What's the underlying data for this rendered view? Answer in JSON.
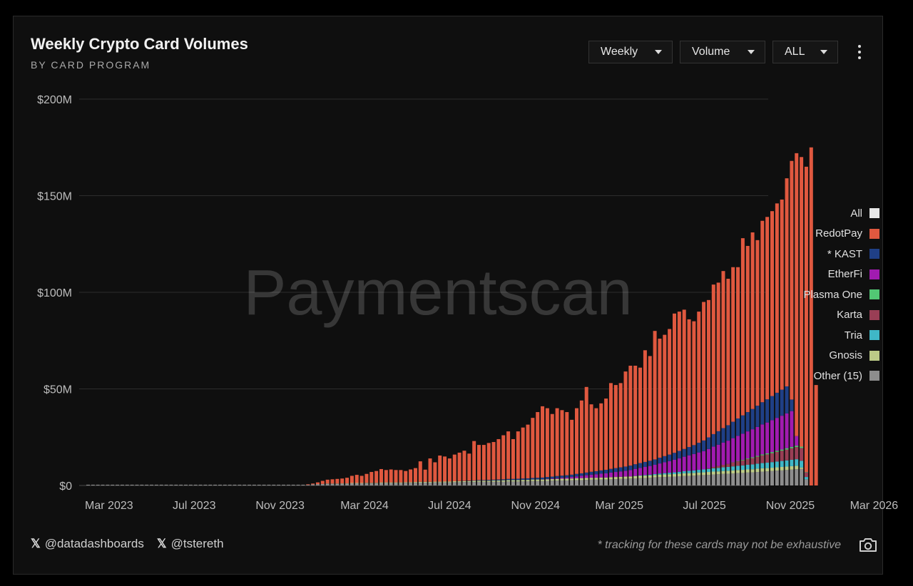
{
  "header": {
    "title": "Weekly Crypto Card Volumes",
    "subtitle": "BY CARD PROGRAM"
  },
  "controls": {
    "interval": "Weekly",
    "metric": "Volume",
    "range": "ALL"
  },
  "watermark": "Paymentscan",
  "footer": {
    "handle1": "@datadashboards",
    "handle2": "@tstereth",
    "note": "* tracking for these cards may not be exhaustive"
  },
  "legend": [
    {
      "label": "All",
      "color": "#e6e6e6"
    },
    {
      "label": "RedotPay",
      "color": "#e0583f"
    },
    {
      "label": "* KAST",
      "color": "#1f3f86"
    },
    {
      "label": "EtherFi",
      "color": "#a11bb0"
    },
    {
      "label": "Plasma One",
      "color": "#52c774"
    },
    {
      "label": "Karta",
      "color": "#993e55"
    },
    {
      "label": "Tria",
      "color": "#3fb7c7"
    },
    {
      "label": "Gnosis",
      "color": "#bccb87"
    },
    {
      "label": "Other (15)",
      "color": "#8d8d8d"
    }
  ],
  "chart_data": {
    "type": "bar",
    "stacked": true,
    "x_start": "2023-01-30",
    "x_interval": "weekly",
    "xticks": [
      "Mar 2023",
      "Jul 2023",
      "Nov 2023",
      "Mar 2024",
      "Jul 2024",
      "Nov 2024",
      "Mar 2025",
      "Jul 2025",
      "Nov 2025",
      "Mar 2026"
    ],
    "yticks": [
      "$0",
      "$50M",
      "$100M",
      "$150M",
      "$200M"
    ],
    "ylim": [
      0,
      200
    ],
    "y_unit": "$M",
    "grid": true,
    "legend_position": "right",
    "totals": [
      0.4,
      0.4,
      0.4,
      0.4,
      0.4,
      0.4,
      0.4,
      0.4,
      0.4,
      0.4,
      0.4,
      0.4,
      0.4,
      0.4,
      0.4,
      0.4,
      0.4,
      0.4,
      0.4,
      0.4,
      0.4,
      0.4,
      0.4,
      0.4,
      0.4,
      0.4,
      0.4,
      0.4,
      0.4,
      0.4,
      0.4,
      0.4,
      0.4,
      0.4,
      0.4,
      0.4,
      0.4,
      0.4,
      0.4,
      0.4,
      0.4,
      0.4,
      0.4,
      0.4,
      0.4,
      0.6,
      1,
      1.6,
      2.4,
      3,
      3.2,
      3.4,
      3.6,
      4,
      5,
      5.5,
      5,
      6,
      7,
      7.5,
      8.5,
      8,
      8.3,
      8,
      8,
      7.5,
      8.3,
      9,
      12.5,
      8.2,
      14,
      12,
      15.5,
      15,
      14,
      16,
      17,
      18,
      16.5,
      23,
      21,
      21,
      22,
      22.5,
      24,
      26,
      28,
      24,
      28,
      30,
      31.5,
      35,
      38,
      41,
      40,
      37,
      40,
      39,
      38,
      34,
      40,
      44,
      51,
      42,
      40,
      42.5,
      45,
      53,
      52,
      53,
      59,
      62,
      62,
      61,
      70,
      67,
      80,
      76,
      78,
      81,
      89,
      90,
      91,
      86,
      85,
      90,
      95,
      96,
      104,
      105,
      111,
      107,
      113,
      113,
      128,
      124,
      131,
      127,
      137,
      139,
      142,
      146,
      148,
      159,
      168,
      172,
      170,
      165,
      175,
      52
    ],
    "series": [
      {
        "name": "Other (15)",
        "color": "#8d8d8d",
        "values": [
          0.4,
          0.4,
          0.4,
          0.4,
          0.4,
          0.4,
          0.4,
          0.4,
          0.4,
          0.4,
          0.4,
          0.4,
          0.4,
          0.4,
          0.4,
          0.4,
          0.4,
          0.4,
          0.4,
          0.4,
          0.4,
          0.4,
          0.4,
          0.4,
          0.4,
          0.4,
          0.4,
          0.4,
          0.4,
          0.4,
          0.4,
          0.4,
          0.4,
          0.4,
          0.4,
          0.4,
          0.4,
          0.4,
          0.4,
          0.4,
          0.4,
          0.4,
          0.4,
          0.4,
          0.4,
          0.5,
          0.6,
          0.7,
          0.8,
          0.9,
          0.9,
          0.9,
          1,
          1,
          1.1,
          1.1,
          1.1,
          1.2,
          1.2,
          1.2,
          1.3,
          1.3,
          1.3,
          1.3,
          1.3,
          1.4,
          1.4,
          1.4,
          1.5,
          1.5,
          1.5,
          1.6,
          1.6,
          1.6,
          1.6,
          1.7,
          1.7,
          1.8,
          1.8,
          1.8,
          1.9,
          1.9,
          1.9,
          2,
          2,
          2,
          2.1,
          2.1,
          2.1,
          2.2,
          2.2,
          2.3,
          2.3,
          2.3,
          2.4,
          2.5,
          2.5,
          2.6,
          2.6,
          2.7,
          2.8,
          2.8,
          2.9,
          3,
          3,
          3.1,
          3.1,
          3.2,
          3.3,
          3.4,
          3.5,
          3.6,
          3.7,
          3.8,
          3.9,
          4,
          4.2,
          4.3,
          4.4,
          4.5,
          4.6,
          4.8,
          4.9,
          5,
          5.1,
          5.3,
          5.4,
          5.5,
          5.7,
          5.8,
          6,
          6.1,
          6.2,
          6.4,
          6.5,
          6.7,
          6.8,
          7,
          7.2,
          7.3,
          7.5,
          7.7,
          7.8,
          8,
          8.2,
          8.4,
          8.6,
          3.2
        ]
      },
      {
        "name": "Gnosis",
        "color": "#bccb87",
        "values": [
          0,
          0,
          0,
          0,
          0,
          0,
          0,
          0,
          0,
          0,
          0,
          0,
          0,
          0,
          0,
          0,
          0,
          0,
          0,
          0,
          0,
          0,
          0,
          0,
          0,
          0,
          0,
          0,
          0,
          0,
          0,
          0,
          0,
          0,
          0,
          0,
          0,
          0,
          0,
          0,
          0,
          0,
          0,
          0,
          0,
          0,
          0,
          0,
          0,
          0.1,
          0.1,
          0.1,
          0.1,
          0.1,
          0.2,
          0.2,
          0.2,
          0.2,
          0.2,
          0.2,
          0.3,
          0.3,
          0.3,
          0.3,
          0.3,
          0.3,
          0.3,
          0.4,
          0.4,
          0.4,
          0.4,
          0.4,
          0.4,
          0.5,
          0.5,
          0.5,
          0.5,
          0.5,
          0.5,
          0.6,
          0.6,
          0.6,
          0.6,
          0.6,
          0.6,
          0.7,
          0.7,
          0.7,
          0.7,
          0.7,
          0.7,
          0.8,
          0.8,
          0.8,
          0.8,
          0.8,
          0.9,
          0.9,
          0.9,
          0.9,
          0.9,
          1,
          1,
          1,
          1,
          1,
          1,
          1.1,
          1.1,
          1.1,
          1.1,
          1.1,
          1.2,
          1.2,
          1.2,
          1.2,
          1.2,
          1.3,
          1.3,
          1.3,
          1.3,
          1.3,
          1.4,
          1.4,
          1.4,
          1.4,
          1.4,
          1.5,
          1.5,
          1.5,
          1.5,
          1.5,
          1.6,
          1.6,
          1.6,
          1.6,
          1.6,
          1.7,
          1.7,
          1.7,
          1.7,
          1.7,
          1.8,
          1.8,
          1.8,
          1.8,
          0.7
        ]
      },
      {
        "name": "Tria",
        "color": "#3fb7c7",
        "values": [
          0,
          0,
          0,
          0,
          0,
          0,
          0,
          0,
          0,
          0,
          0,
          0,
          0,
          0,
          0,
          0,
          0,
          0,
          0,
          0,
          0,
          0,
          0,
          0,
          0,
          0,
          0,
          0,
          0,
          0,
          0,
          0,
          0,
          0,
          0,
          0,
          0,
          0,
          0,
          0,
          0,
          0,
          0,
          0,
          0,
          0,
          0,
          0,
          0,
          0,
          0,
          0,
          0,
          0,
          0,
          0,
          0,
          0,
          0,
          0,
          0,
          0,
          0,
          0,
          0,
          0,
          0,
          0,
          0,
          0,
          0,
          0,
          0,
          0,
          0,
          0,
          0,
          0,
          0,
          0,
          0,
          0,
          0,
          0,
          0,
          0,
          0,
          0,
          0,
          0,
          0,
          0,
          0,
          0,
          0,
          0,
          0,
          0,
          0,
          0,
          0,
          0,
          0,
          0,
          0,
          0,
          0,
          0,
          0,
          0,
          0,
          0,
          0.1,
          0.2,
          0.3,
          0.4,
          0.5,
          0.6,
          0.7,
          0.8,
          0.9,
          1,
          1.1,
          1.2,
          1.3,
          1.4,
          1.5,
          1.6,
          1.7,
          1.8,
          1.9,
          2,
          2.1,
          2.2,
          2.3,
          2.4,
          2.5,
          2.6,
          2.7,
          2.8,
          2.9,
          3,
          3.1,
          3.2,
          3.3,
          3.4,
          3.5,
          1.2
        ]
      },
      {
        "name": "Karta",
        "color": "#993e55",
        "values": [
          0,
          0,
          0,
          0,
          0,
          0,
          0,
          0,
          0,
          0,
          0,
          0,
          0,
          0,
          0,
          0,
          0,
          0,
          0,
          0,
          0,
          0,
          0,
          0,
          0,
          0,
          0,
          0,
          0,
          0,
          0,
          0,
          0,
          0,
          0,
          0,
          0,
          0,
          0,
          0,
          0,
          0,
          0,
          0,
          0,
          0,
          0,
          0,
          0,
          0,
          0,
          0,
          0,
          0,
          0,
          0,
          0,
          0,
          0,
          0,
          0,
          0,
          0,
          0,
          0,
          0,
          0,
          0,
          0,
          0,
          0,
          0,
          0,
          0,
          0,
          0,
          0,
          0,
          0,
          0,
          0,
          0,
          0,
          0,
          0,
          0,
          0,
          0,
          0,
          0,
          0,
          0,
          0,
          0,
          0,
          0,
          0,
          0,
          0,
          0,
          0,
          0,
          0,
          0,
          0,
          0,
          0,
          0,
          0,
          0,
          0,
          0,
          0,
          0,
          0,
          0,
          0,
          0,
          0,
          0,
          0,
          0,
          0,
          0,
          0,
          0,
          0,
          0.3,
          0.7,
          1,
          1.3,
          1.6,
          2,
          2.3,
          2.6,
          3,
          3.3,
          3.6,
          4,
          4.3,
          4.6,
          5,
          5.3,
          5.6,
          6,
          6.3,
          6.6,
          2.4
        ]
      },
      {
        "name": "Plasma One",
        "color": "#52c774",
        "values": [
          0,
          0,
          0,
          0,
          0,
          0,
          0,
          0,
          0,
          0,
          0,
          0,
          0,
          0,
          0,
          0,
          0,
          0,
          0,
          0,
          0,
          0,
          0,
          0,
          0,
          0,
          0,
          0,
          0,
          0,
          0,
          0,
          0,
          0,
          0,
          0,
          0,
          0,
          0,
          0,
          0,
          0,
          0,
          0,
          0,
          0,
          0,
          0,
          0,
          0,
          0,
          0,
          0,
          0,
          0,
          0,
          0,
          0,
          0,
          0,
          0,
          0,
          0,
          0,
          0,
          0,
          0,
          0,
          0,
          0,
          0,
          0,
          0,
          0,
          0,
          0,
          0,
          0,
          0,
          0,
          0,
          0,
          0,
          0,
          0,
          0,
          0,
          0,
          0,
          0,
          0,
          0,
          0,
          0,
          0,
          0,
          0,
          0,
          0,
          0,
          0,
          0,
          0,
          0,
          0,
          0,
          0,
          0,
          0,
          0,
          0,
          0,
          0,
          0,
          0,
          0,
          0,
          0,
          0,
          0,
          0,
          0,
          0,
          0,
          0,
          0,
          0,
          0,
          0,
          0,
          0,
          0,
          0.1,
          0.2,
          0.3,
          0.3,
          0.4,
          0.4,
          0.5,
          0.5,
          0.6,
          0.6,
          0.6,
          0.7,
          0.7,
          0.7,
          0.7,
          0.2
        ]
      },
      {
        "name": "EtherFi",
        "color": "#a11bb0",
        "values": [
          0,
          0,
          0,
          0,
          0,
          0,
          0,
          0,
          0,
          0,
          0,
          0,
          0,
          0,
          0,
          0,
          0,
          0,
          0,
          0,
          0,
          0,
          0,
          0,
          0,
          0,
          0,
          0,
          0,
          0,
          0,
          0,
          0,
          0,
          0,
          0,
          0,
          0,
          0,
          0,
          0,
          0,
          0,
          0,
          0,
          0,
          0,
          0,
          0,
          0,
          0,
          0,
          0,
          0,
          0,
          0,
          0,
          0,
          0,
          0,
          0,
          0,
          0,
          0,
          0,
          0,
          0,
          0,
          0,
          0,
          0,
          0,
          0,
          0,
          0,
          0,
          0,
          0,
          0,
          0,
          0,
          0,
          0,
          0,
          0,
          0,
          0,
          0,
          0,
          0,
          0,
          0,
          0,
          0.1,
          0.2,
          0.3,
          0.4,
          0.5,
          0.6,
          0.8,
          1,
          1.2,
          1.4,
          1.6,
          1.8,
          2,
          2.2,
          2.4,
          2.6,
          2.8,
          3,
          3.3,
          3.6,
          3.9,
          4.2,
          4.5,
          4.8,
          5.2,
          5.6,
          6,
          6.5,
          7,
          7.5,
          8,
          8.5,
          9,
          9.5,
          10,
          10.5,
          11,
          11.5,
          12,
          12.5,
          13,
          13.5,
          14,
          14.5,
          15,
          15.5,
          16,
          16.5,
          17,
          17.5,
          18,
          18.5,
          5
        ]
      },
      {
        "name": "* KAST",
        "color": "#1f3f86",
        "values": [
          0,
          0,
          0,
          0,
          0,
          0,
          0,
          0,
          0,
          0,
          0,
          0,
          0,
          0,
          0,
          0,
          0,
          0,
          0,
          0,
          0,
          0,
          0,
          0,
          0,
          0,
          0,
          0,
          0,
          0,
          0,
          0,
          0,
          0,
          0,
          0,
          0,
          0,
          0,
          0,
          0,
          0,
          0,
          0,
          0,
          0,
          0,
          0,
          0,
          0,
          0,
          0,
          0,
          0,
          0,
          0,
          0,
          0,
          0,
          0,
          0,
          0,
          0,
          0,
          0,
          0,
          0,
          0,
          0,
          0,
          0,
          0,
          0,
          0,
          0,
          0,
          0.1,
          0.1,
          0.2,
          0.2,
          0.3,
          0.3,
          0.4,
          0.4,
          0.5,
          0.5,
          0.6,
          0.6,
          0.7,
          0.7,
          0.8,
          0.8,
          0.9,
          0.9,
          1,
          1,
          1.1,
          1.1,
          1.2,
          1.2,
          1.3,
          1.3,
          1.4,
          1.5,
          1.6,
          1.7,
          1.8,
          1.9,
          2,
          2.1,
          2.2,
          2.3,
          2.4,
          2.5,
          2.6,
          2.7,
          2.8,
          3,
          3.2,
          3.4,
          3.6,
          3.8,
          4,
          4.3,
          4.6,
          5,
          5.5,
          6,
          6.5,
          7,
          7.5,
          8,
          8.5,
          9,
          9.5,
          10,
          10.5,
          11,
          11.5,
          12,
          12.5,
          13,
          13.5,
          14,
          6
        ]
      }
    ]
  }
}
